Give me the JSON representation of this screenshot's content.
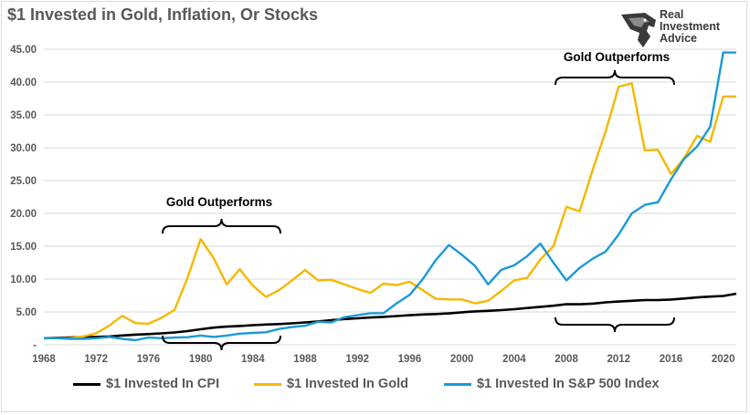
{
  "title": "$1 Invested in Gold, Inflation, Or Stocks",
  "logo": {
    "lines": [
      "Real",
      "Investment",
      "Advice"
    ]
  },
  "annotations": [
    {
      "text": "Gold Outperforms",
      "bracket": "down"
    },
    {
      "text": "Gold Outperforms",
      "bracket": "down"
    },
    {
      "text": "",
      "bracket": "up"
    },
    {
      "text": "",
      "bracket": "up"
    }
  ],
  "chart_data": {
    "type": "line",
    "title": "$1 Invested in Gold, Inflation, Or Stocks",
    "xlabel": "",
    "ylabel": "",
    "xlim": [
      1968,
      2021
    ],
    "ylim": [
      0,
      45
    ],
    "x_ticks": [
      1968,
      1972,
      1976,
      1980,
      1984,
      1988,
      1992,
      1996,
      2000,
      2004,
      2008,
      2012,
      2016,
      2020
    ],
    "y_ticks": [
      {
        "value": 0,
        "label": "-"
      },
      {
        "value": 5,
        "label": "5.00"
      },
      {
        "value": 10,
        "label": "10.00"
      },
      {
        "value": 15,
        "label": "15.00"
      },
      {
        "value": 20,
        "label": "20.00"
      },
      {
        "value": 25,
        "label": "25.00"
      },
      {
        "value": 30,
        "label": "30.00"
      },
      {
        "value": 35,
        "label": "35.00"
      },
      {
        "value": 40,
        "label": "40.00"
      },
      {
        "value": 45,
        "label": "45.00"
      }
    ],
    "grid": "horizontal",
    "legend_position": "bottom",
    "x": [
      1968,
      1969,
      1970,
      1971,
      1972,
      1973,
      1974,
      1975,
      1976,
      1977,
      1978,
      1979,
      1980,
      1981,
      1982,
      1983,
      1984,
      1985,
      1986,
      1987,
      1988,
      1989,
      1990,
      1991,
      1992,
      1993,
      1994,
      1995,
      1996,
      1997,
      1998,
      1999,
      2000,
      2001,
      2002,
      2003,
      2004,
      2005,
      2006,
      2007,
      2008,
      2009,
      2010,
      2011,
      2012,
      2013,
      2014,
      2015,
      2016,
      2017,
      2018,
      2019,
      2020,
      2021
    ],
    "series": [
      {
        "name": "$1 Invested In CPI",
        "color": "#000000",
        "values": [
          1.0,
          1.05,
          1.11,
          1.16,
          1.2,
          1.27,
          1.41,
          1.54,
          1.63,
          1.74,
          1.87,
          2.08,
          2.36,
          2.61,
          2.77,
          2.86,
          2.98,
          3.09,
          3.15,
          3.26,
          3.4,
          3.56,
          3.75,
          3.91,
          4.03,
          4.15,
          4.25,
          4.37,
          4.5,
          4.61,
          4.68,
          4.78,
          4.94,
          5.08,
          5.16,
          5.28,
          5.42,
          5.6,
          5.78,
          5.95,
          6.18,
          6.16,
          6.26,
          6.46,
          6.59,
          6.69,
          6.8,
          6.81,
          6.89,
          7.04,
          7.21,
          7.34,
          7.43,
          7.78
        ]
      },
      {
        "name": "$1 Invested In Gold",
        "color": "#f5b800",
        "values": [
          1.0,
          1.0,
          1.0,
          1.25,
          1.75,
          2.9,
          4.4,
          3.3,
          3.2,
          4.1,
          5.3,
          10.2,
          16.1,
          13.2,
          9.2,
          11.5,
          9.0,
          7.3,
          8.3,
          9.8,
          11.4,
          9.8,
          9.9,
          9.2,
          8.5,
          7.9,
          9.3,
          9.1,
          9.6,
          8.3,
          7.0,
          6.9,
          6.9,
          6.3,
          6.7,
          8.2,
          9.8,
          10.2,
          13.0,
          15.0,
          21.0,
          20.3,
          26.6,
          32.5,
          39.3,
          39.8,
          29.6,
          29.7,
          26.0,
          28.4,
          31.8,
          30.9,
          37.8,
          37.8
        ]
      },
      {
        "name": "$1 Invested In S&P 500 Index",
        "color": "#1a9ad6",
        "values": [
          1.0,
          1.0,
          0.9,
          0.9,
          1.0,
          1.2,
          0.9,
          0.7,
          1.1,
          1.0,
          1.1,
          1.15,
          1.4,
          1.2,
          1.4,
          1.7,
          1.8,
          1.9,
          2.4,
          2.7,
          2.9,
          3.5,
          3.4,
          4.2,
          4.5,
          4.8,
          4.8,
          6.3,
          7.6,
          10.0,
          12.9,
          15.2,
          13.7,
          12.0,
          9.2,
          11.4,
          12.1,
          13.5,
          15.4,
          12.5,
          9.8,
          11.7,
          13.1,
          14.2,
          16.8,
          20.0,
          21.3,
          21.7,
          25.2,
          28.3,
          30.2,
          33.2,
          44.5,
          44.5
        ]
      }
    ]
  }
}
